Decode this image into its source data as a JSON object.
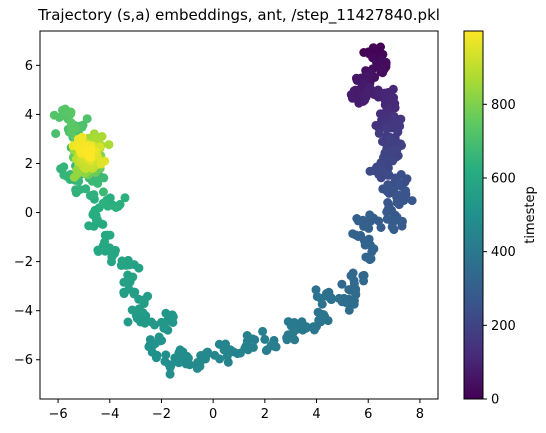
{
  "chart_data": {
    "type": "scatter",
    "title": "Trajectory (s,a) embeddings, ant, /step_11427840.pkl",
    "xlabel": "",
    "ylabel": "",
    "xlim": [
      -6.7,
      8.7
    ],
    "ylim": [
      -7.6,
      7.4
    ],
    "xticks": [
      -6,
      -4,
      -2,
      0,
      2,
      4,
      6,
      8
    ],
    "yticks": [
      -6,
      -4,
      -2,
      0,
      2,
      4,
      6
    ],
    "grid": false,
    "colorbar": {
      "label": "timestep",
      "colormap": "viridis",
      "range": [
        0,
        999
      ],
      "ticks": [
        0,
        200,
        400,
        600,
        800
      ]
    },
    "trajectory_path": [
      {
        "x": 6.1,
        "y": 6.6,
        "t": 0
      },
      {
        "x": 6.5,
        "y": 6.0,
        "t": 30
      },
      {
        "x": 5.8,
        "y": 5.5,
        "t": 55
      },
      {
        "x": 5.6,
        "y": 4.7,
        "t": 80
      },
      {
        "x": 6.6,
        "y": 4.9,
        "t": 100
      },
      {
        "x": 6.8,
        "y": 4.2,
        "t": 120
      },
      {
        "x": 6.5,
        "y": 3.7,
        "t": 140
      },
      {
        "x": 7.2,
        "y": 3.6,
        "t": 160
      },
      {
        "x": 6.7,
        "y": 3.0,
        "t": 175
      },
      {
        "x": 7.1,
        "y": 2.6,
        "t": 190
      },
      {
        "x": 6.9,
        "y": 2.1,
        "t": 205
      },
      {
        "x": 6.2,
        "y": 1.7,
        "t": 220
      },
      {
        "x": 7.3,
        "y": 1.4,
        "t": 235
      },
      {
        "x": 6.6,
        "y": 0.9,
        "t": 250
      },
      {
        "x": 7.5,
        "y": 0.7,
        "t": 262
      },
      {
        "x": 6.8,
        "y": 0.1,
        "t": 275
      },
      {
        "x": 7.2,
        "y": -0.5,
        "t": 288
      },
      {
        "x": 6.0,
        "y": -0.3,
        "t": 300
      },
      {
        "x": 5.6,
        "y": -0.9,
        "t": 312
      },
      {
        "x": 6.1,
        "y": -1.4,
        "t": 322
      },
      {
        "x": 5.8,
        "y": -2.4,
        "t": 332
      },
      {
        "x": 5.2,
        "y": -3.0,
        "t": 342
      },
      {
        "x": 5.5,
        "y": -3.8,
        "t": 352
      },
      {
        "x": 4.8,
        "y": -3.5,
        "t": 362
      },
      {
        "x": 4.2,
        "y": -3.1,
        "t": 372
      },
      {
        "x": 4.4,
        "y": -4.2,
        "t": 382
      },
      {
        "x": 3.8,
        "y": -4.8,
        "t": 392
      },
      {
        "x": 3.2,
        "y": -4.4,
        "t": 402
      },
      {
        "x": 2.9,
        "y": -5.2,
        "t": 412
      },
      {
        "x": 2.2,
        "y": -5.6,
        "t": 422
      },
      {
        "x": 1.5,
        "y": -5.1,
        "t": 432
      },
      {
        "x": 1.0,
        "y": -5.9,
        "t": 442
      },
      {
        "x": 0.3,
        "y": -5.5,
        "t": 452
      },
      {
        "x": -0.4,
        "y": -5.9,
        "t": 462
      },
      {
        "x": -0.8,
        "y": -6.2,
        "t": 472
      },
      {
        "x": -1.3,
        "y": -5.7,
        "t": 482
      },
      {
        "x": -1.8,
        "y": -6.3,
        "t": 492
      },
      {
        "x": -2.3,
        "y": -5.6,
        "t": 502
      },
      {
        "x": -2.0,
        "y": -4.9,
        "t": 512
      },
      {
        "x": -1.5,
        "y": -4.3,
        "t": 522
      },
      {
        "x": -2.6,
        "y": -4.6,
        "t": 532
      },
      {
        "x": -3.0,
        "y": -4.2,
        "t": 542
      },
      {
        "x": -2.7,
        "y": -3.4,
        "t": 552
      },
      {
        "x": -3.4,
        "y": -2.8,
        "t": 562
      },
      {
        "x": -3.0,
        "y": -2.1,
        "t": 572
      },
      {
        "x": -3.8,
        "y": -1.9,
        "t": 582
      },
      {
        "x": -4.3,
        "y": -1.4,
        "t": 592
      },
      {
        "x": -4.0,
        "y": -0.7,
        "t": 602
      },
      {
        "x": -4.6,
        "y": -0.3,
        "t": 612
      },
      {
        "x": -4.4,
        "y": 0.4,
        "t": 622
      },
      {
        "x": -3.5,
        "y": 0.3,
        "t": 632
      },
      {
        "x": -5.2,
        "y": 0.9,
        "t": 642
      },
      {
        "x": -5.8,
        "y": 1.6,
        "t": 652
      },
      {
        "x": -5.1,
        "y": 1.6,
        "t": 662
      },
      {
        "x": -4.2,
        "y": 1.2,
        "t": 672
      },
      {
        "x": -5.4,
        "y": 2.5,
        "t": 682
      },
      {
        "x": -4.6,
        "y": 2.9,
        "t": 692
      },
      {
        "x": -5.9,
        "y": 3.3,
        "t": 702
      },
      {
        "x": -5.0,
        "y": 3.5,
        "t": 712
      },
      {
        "x": -6.0,
        "y": 3.9,
        "t": 722
      },
      {
        "x": -5.6,
        "y": 4.2,
        "t": 732
      },
      {
        "x": -5.2,
        "y": 2.0,
        "t": 752
      },
      {
        "x": -4.6,
        "y": 1.7,
        "t": 772
      },
      {
        "x": -5.0,
        "y": 2.7,
        "t": 792
      },
      {
        "x": -4.5,
        "y": 2.3,
        "t": 812
      },
      {
        "x": -5.3,
        "y": 1.5,
        "t": 832
      },
      {
        "x": -4.9,
        "y": 3.0,
        "t": 852
      },
      {
        "x": -4.3,
        "y": 2.7,
        "t": 872
      },
      {
        "x": -5.1,
        "y": 2.2,
        "t": 892
      },
      {
        "x": -4.7,
        "y": 1.9,
        "t": 912
      },
      {
        "x": -4.9,
        "y": 2.6,
        "t": 932
      },
      {
        "x": -4.4,
        "y": 2.1,
        "t": 952
      },
      {
        "x": -5.2,
        "y": 2.9,
        "t": 972
      },
      {
        "x": -4.8,
        "y": 2.3,
        "t": 999
      }
    ]
  }
}
